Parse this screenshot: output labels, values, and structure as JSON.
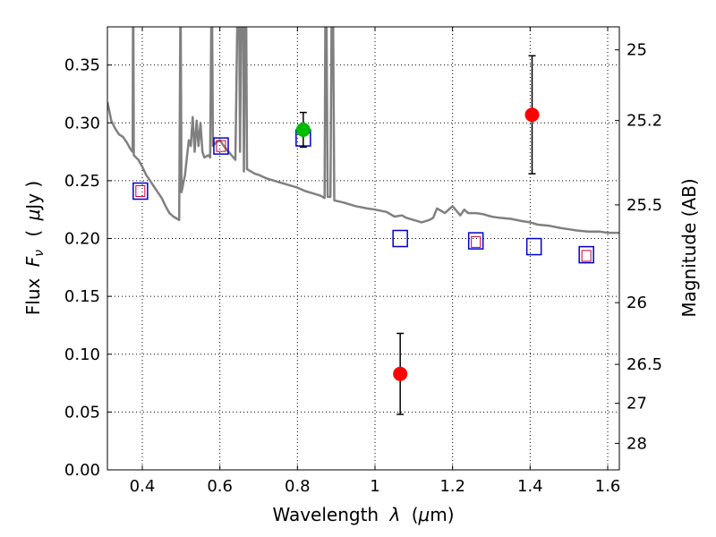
{
  "chart_data": {
    "type": "scatter",
    "xlabel": "Wavelength",
    "xlabel_math": "λ",
    "xlabel_unit_open": "(",
    "xlabel_unit_math": "μ",
    "xlabel_unit_rest": "m)",
    "ylabel": "Flux",
    "ylabel_math": "F",
    "ylabel_sub": "ν",
    "ylabel_unit_open": "(",
    "ylabel_unit_math": "μ",
    "ylabel_unit_rest": "Jy )",
    "y2label": "Magnitude (AB)",
    "xlim": [
      0.31,
      1.63
    ],
    "ylim": [
      0,
      0.383
    ],
    "grid": true,
    "xticks": [
      0.4,
      0.6,
      0.8,
      1.0,
      1.2,
      1.4,
      1.6
    ],
    "xtick_labels": [
      "0.4",
      "0.6",
      "0.8",
      "1",
      "1.2",
      "1.4",
      "1.6"
    ],
    "yticks": [
      0.0,
      0.05,
      0.1,
      0.15,
      0.2,
      0.25,
      0.3,
      0.35
    ],
    "ytick_labels": [
      "0.00",
      "0.05",
      "0.10",
      "0.15",
      "0.20",
      "0.25",
      "0.30",
      "0.35"
    ],
    "mag_ticks": [
      25,
      25.2,
      25.5,
      26,
      26.5,
      27,
      28
    ],
    "mag_tick_labels": [
      "25",
      "25.2",
      "25.5",
      "26",
      "26.5",
      "27",
      "28"
    ],
    "colors": {
      "sed": "#808080",
      "model_box": "#0000cc",
      "model_inner": "#cc0033",
      "detection": "#ff0000",
      "detection_green": "#00bb00",
      "errorbar": "#000000"
    },
    "series": [
      {
        "kind": "sed-line",
        "points": [
          [
            0.31,
            0.318
          ],
          [
            0.315,
            0.31
          ],
          [
            0.32,
            0.302
          ],
          [
            0.33,
            0.295
          ],
          [
            0.34,
            0.29
          ],
          [
            0.35,
            0.288
          ],
          [
            0.36,
            0.283
          ],
          [
            0.37,
            0.277
          ],
          [
            0.375,
            0.275
          ],
          [
            0.376,
            0.39
          ],
          [
            0.377,
            0.39
          ],
          [
            0.378,
            0.272
          ],
          [
            0.39,
            0.268
          ],
          [
            0.4,
            0.262
          ],
          [
            0.41,
            0.255
          ],
          [
            0.42,
            0.25
          ],
          [
            0.43,
            0.245
          ],
          [
            0.44,
            0.24
          ],
          [
            0.45,
            0.235
          ],
          [
            0.46,
            0.228
          ],
          [
            0.47,
            0.222
          ],
          [
            0.48,
            0.219
          ],
          [
            0.49,
            0.217
          ],
          [
            0.495,
            0.216
          ],
          [
            0.498,
            0.39
          ],
          [
            0.499,
            0.39
          ],
          [
            0.501,
            0.24
          ],
          [
            0.51,
            0.255
          ],
          [
            0.515,
            0.27
          ],
          [
            0.52,
            0.285
          ],
          [
            0.525,
            0.28
          ],
          [
            0.53,
            0.305
          ],
          [
            0.535,
            0.275
          ],
          [
            0.54,
            0.302
          ],
          [
            0.545,
            0.28
          ],
          [
            0.55,
            0.3
          ],
          [
            0.555,
            0.275
          ],
          [
            0.56,
            0.27
          ],
          [
            0.57,
            0.272
          ],
          [
            0.575,
            0.27
          ],
          [
            0.578,
            0.39
          ],
          [
            0.58,
            0.39
          ],
          [
            0.582,
            0.28
          ],
          [
            0.59,
            0.283
          ],
          [
            0.6,
            0.285
          ],
          [
            0.61,
            0.28
          ],
          [
            0.62,
            0.276
          ],
          [
            0.63,
            0.272
          ],
          [
            0.64,
            0.268
          ],
          [
            0.645,
            0.39
          ],
          [
            0.65,
            0.39
          ],
          [
            0.652,
            0.275
          ],
          [
            0.655,
            0.39
          ],
          [
            0.66,
            0.39
          ],
          [
            0.662,
            0.258
          ],
          [
            0.665,
            0.39
          ],
          [
            0.668,
            0.39
          ],
          [
            0.67,
            0.26
          ],
          [
            0.68,
            0.258
          ],
          [
            0.69,
            0.256
          ],
          [
            0.7,
            0.255
          ],
          [
            0.72,
            0.252
          ],
          [
            0.74,
            0.25
          ],
          [
            0.76,
            0.248
          ],
          [
            0.78,
            0.246
          ],
          [
            0.8,
            0.244
          ],
          [
            0.82,
            0.241
          ],
          [
            0.84,
            0.239
          ],
          [
            0.86,
            0.237
          ],
          [
            0.87,
            0.235
          ],
          [
            0.872,
            0.39
          ],
          [
            0.875,
            0.39
          ],
          [
            0.878,
            0.236
          ],
          [
            0.885,
            0.236
          ],
          [
            0.888,
            0.39
          ],
          [
            0.892,
            0.39
          ],
          [
            0.895,
            0.233
          ],
          [
            0.92,
            0.231
          ],
          [
            0.95,
            0.228
          ],
          [
            0.98,
            0.226
          ],
          [
            1.0,
            0.225
          ],
          [
            1.03,
            0.223
          ],
          [
            1.05,
            0.219
          ],
          [
            1.07,
            0.22
          ],
          [
            1.08,
            0.218
          ],
          [
            1.1,
            0.216
          ],
          [
            1.12,
            0.214
          ],
          [
            1.14,
            0.216
          ],
          [
            1.15,
            0.218
          ],
          [
            1.16,
            0.226
          ],
          [
            1.17,
            0.224
          ],
          [
            1.18,
            0.222
          ],
          [
            1.2,
            0.228
          ],
          [
            1.21,
            0.224
          ],
          [
            1.22,
            0.22
          ],
          [
            1.23,
            0.225
          ],
          [
            1.24,
            0.222
          ],
          [
            1.26,
            0.222
          ],
          [
            1.28,
            0.221
          ],
          [
            1.3,
            0.219
          ],
          [
            1.32,
            0.218
          ],
          [
            1.35,
            0.217
          ],
          [
            1.38,
            0.215
          ],
          [
            1.4,
            0.214
          ],
          [
            1.42,
            0.212
          ],
          [
            1.45,
            0.211
          ],
          [
            1.48,
            0.209
          ],
          [
            1.5,
            0.208
          ],
          [
            1.52,
            0.207
          ],
          [
            1.55,
            0.206
          ],
          [
            1.58,
            0.206
          ],
          [
            1.6,
            0.205
          ],
          [
            1.63,
            0.205
          ]
        ]
      },
      {
        "kind": "model-squares",
        "points": [
          [
            0.395,
            0.241
          ],
          [
            0.603,
            0.28
          ],
          [
            0.815,
            0.287
          ],
          [
            1.065,
            0.2
          ],
          [
            1.26,
            0.198
          ],
          [
            1.41,
            0.193
          ],
          [
            1.545,
            0.186
          ]
        ]
      },
      {
        "kind": "model-inner-squares",
        "points": [
          [
            0.395,
            0.241
          ],
          [
            0.603,
            0.28
          ],
          [
            1.26,
            0.197
          ],
          [
            1.545,
            0.185
          ]
        ]
      },
      {
        "kind": "detections",
        "points": [
          {
            "x": 0.815,
            "y": 0.294,
            "err": 0.015,
            "color": "#00bb00"
          },
          {
            "x": 1.065,
            "y": 0.083,
            "err": 0.035,
            "color": "#ff0000"
          },
          {
            "x": 1.405,
            "y": 0.307,
            "err": 0.051,
            "color": "#ff0000"
          }
        ]
      }
    ]
  }
}
